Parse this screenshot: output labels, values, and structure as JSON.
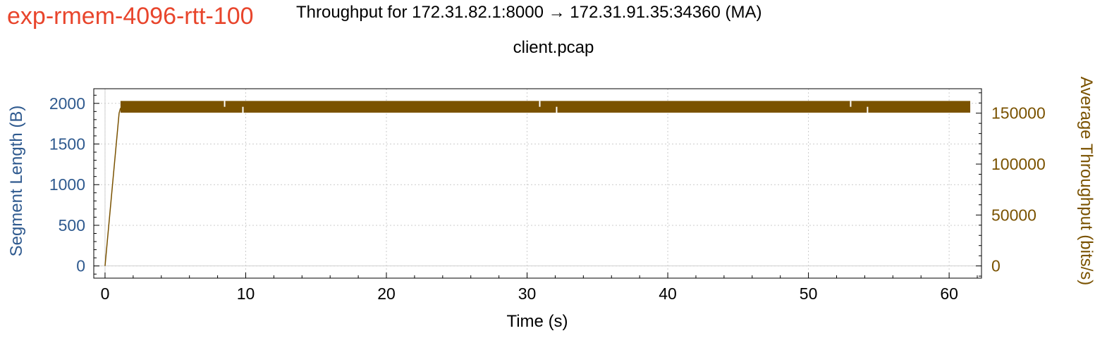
{
  "experiment_label": "exp-rmem-4096-rtt-100",
  "colors": {
    "experiment_label": "#e8452c",
    "left_axis": "#2f5a8f",
    "right_axis": "#7a5200",
    "throughput": "#7a5200",
    "grid": "#cccccc"
  },
  "chart_data": {
    "type": "line",
    "title": "Throughput for 172.31.82.1:8000 → 172.31.91.35:34360 (MA)",
    "subtitle": "client.pcap",
    "xlabel": "Time (s)",
    "ylabel_left": "Segment Length (B)",
    "ylabel_right": "Average Throughput (bits/s)",
    "xlim": [
      -0.8,
      62.3
    ],
    "ylim_left": [
      -150,
      2180
    ],
    "ylim_right": [
      -12000,
      174000
    ],
    "x_ticks": [
      0,
      10,
      20,
      30,
      40,
      50,
      60
    ],
    "y_ticks_left": [
      0,
      500,
      1000,
      1500,
      2000
    ],
    "y_ticks_right": [
      0,
      50000,
      100000,
      150000
    ],
    "grid": true,
    "series": [
      {
        "name": "",
        "axis": "right",
        "ramp": [
          [
            0.0,
            0
          ],
          [
            1.0,
            150000
          ],
          [
            1.1,
            155000
          ]
        ],
        "band_start": 1.1,
        "band_end": 61.5,
        "band_min": 150500,
        "band_max": 162000,
        "dropouts": [
          8.5,
          9.8,
          30.9,
          32.1,
          53.0,
          54.2
        ]
      }
    ]
  }
}
